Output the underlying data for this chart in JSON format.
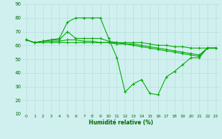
{
  "title": "",
  "xlabel": "Humidité relative (%)",
  "ylabel": "",
  "bg_color": "#d0f0f0",
  "grid_color": "#b8ddd8",
  "line_color": "#00aa00",
  "xlim": [
    -0.5,
    23.5
  ],
  "ylim": [
    10,
    90
  ],
  "yticks": [
    10,
    20,
    30,
    40,
    50,
    60,
    70,
    80,
    90
  ],
  "xticks": [
    0,
    1,
    2,
    3,
    4,
    5,
    6,
    7,
    8,
    9,
    10,
    11,
    12,
    13,
    14,
    15,
    16,
    17,
    18,
    19,
    20,
    21,
    22,
    23
  ],
  "lines": [
    {
      "x": [
        0,
        1,
        2,
        3,
        4,
        5,
        6,
        7,
        8,
        9,
        10,
        11,
        12,
        13,
        14,
        15,
        16,
        17,
        18,
        19,
        20,
        21,
        22,
        23
      ],
      "y": [
        64,
        62,
        63,
        64,
        65,
        77,
        80,
        80,
        80,
        80,
        65,
        51,
        26,
        32,
        35,
        25,
        24,
        37,
        41,
        46,
        51,
        51,
        58,
        58
      ]
    },
    {
      "x": [
        0,
        1,
        2,
        3,
        4,
        5,
        6,
        7,
        8,
        9,
        10,
        11,
        12,
        13,
        14,
        15,
        16,
        17,
        18,
        19,
        20,
        21,
        22,
        23
      ],
      "y": [
        64,
        62,
        63,
        64,
        64,
        70,
        65,
        65,
        65,
        65,
        63,
        62,
        62,
        62,
        62,
        61,
        60,
        60,
        59,
        59,
        58,
        58,
        58,
        58
      ]
    },
    {
      "x": [
        0,
        1,
        2,
        3,
        4,
        5,
        6,
        7,
        8,
        9,
        10,
        11,
        12,
        13,
        14,
        15,
        16,
        17,
        18,
        19,
        20,
        21,
        22,
        23
      ],
      "y": [
        64,
        62,
        63,
        63,
        63,
        64,
        64,
        63,
        63,
        62,
        62,
        62,
        61,
        61,
        60,
        59,
        58,
        57,
        56,
        55,
        54,
        53,
        58,
        58
      ]
    },
    {
      "x": [
        0,
        1,
        2,
        3,
        4,
        5,
        6,
        7,
        8,
        9,
        10,
        11,
        12,
        13,
        14,
        15,
        16,
        17,
        18,
        19,
        20,
        21,
        22,
        23
      ],
      "y": [
        64,
        62,
        62,
        62,
        62,
        62,
        62,
        62,
        62,
        62,
        62,
        61,
        61,
        60,
        59,
        58,
        57,
        56,
        55,
        54,
        53,
        52,
        58,
        58
      ]
    }
  ]
}
